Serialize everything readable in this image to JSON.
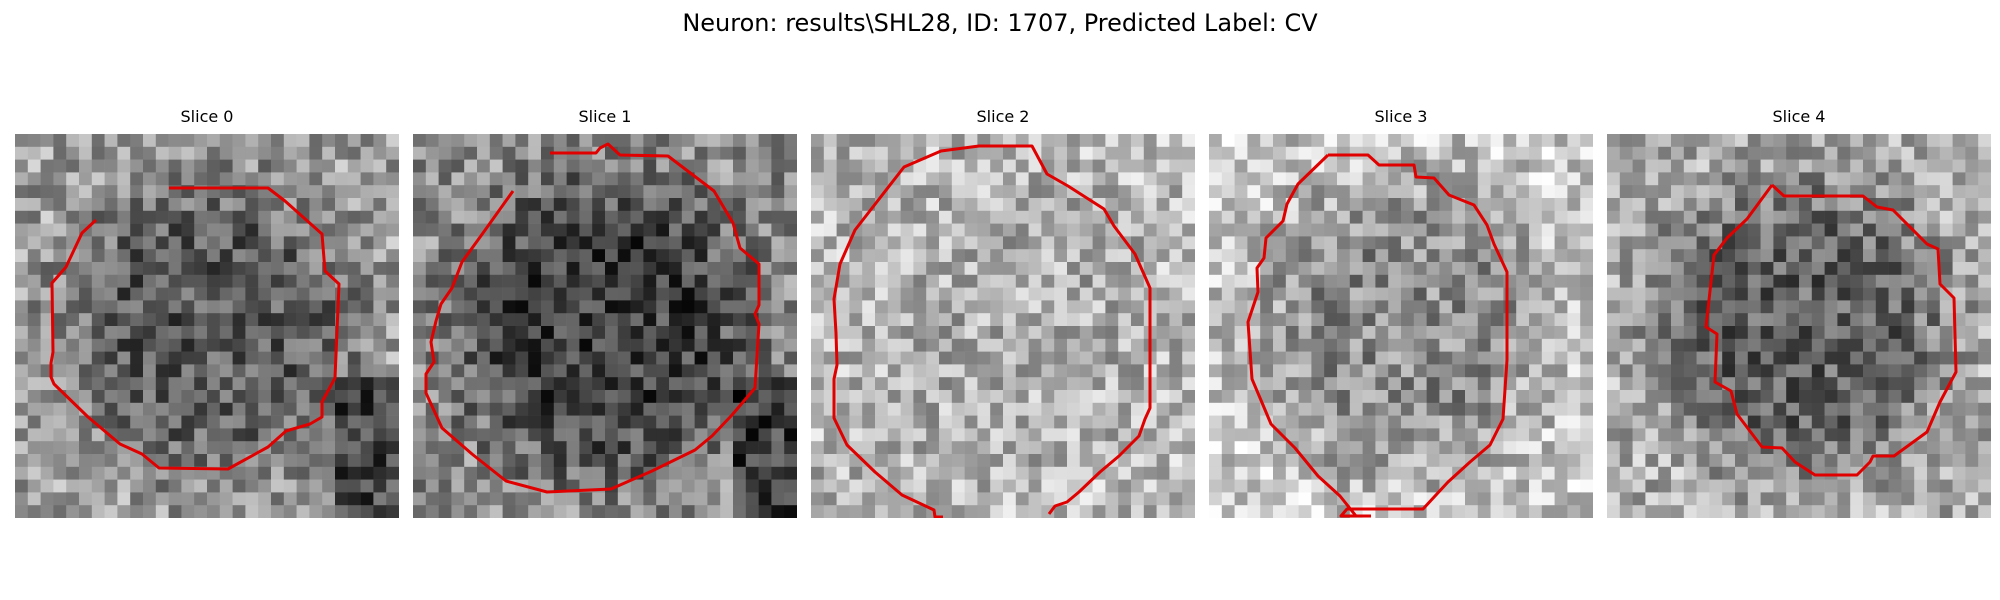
{
  "figure": {
    "title": "Neuron: results\\SHL28, ID: 1707, Predicted Label: CV"
  },
  "panels": [
    {
      "label": "Slice 0",
      "seed": 11,
      "center_brightness": 0.35,
      "edge_brightness": 0.62,
      "darken_bottom_right": true
    },
    {
      "label": "Slice 1",
      "seed": 23,
      "center_brightness": 0.25,
      "edge_brightness": 0.55,
      "darken_bottom_right": true
    },
    {
      "label": "Slice 2",
      "seed": 37,
      "center_brightness": 0.68,
      "edge_brightness": 0.72,
      "darken_bottom_right": false
    },
    {
      "label": "Slice 3",
      "seed": 41,
      "center_brightness": 0.55,
      "edge_brightness": 0.78,
      "darken_bottom_right": false
    },
    {
      "label": "Slice 4",
      "seed": 53,
      "center_brightness": 0.38,
      "edge_brightness": 0.68,
      "darken_bottom_right": false
    }
  ],
  "colors": {
    "contour": "#e00000",
    "background": "#ffffff"
  },
  "image": {
    "grid_cells": 30,
    "colormap": "gray"
  }
}
